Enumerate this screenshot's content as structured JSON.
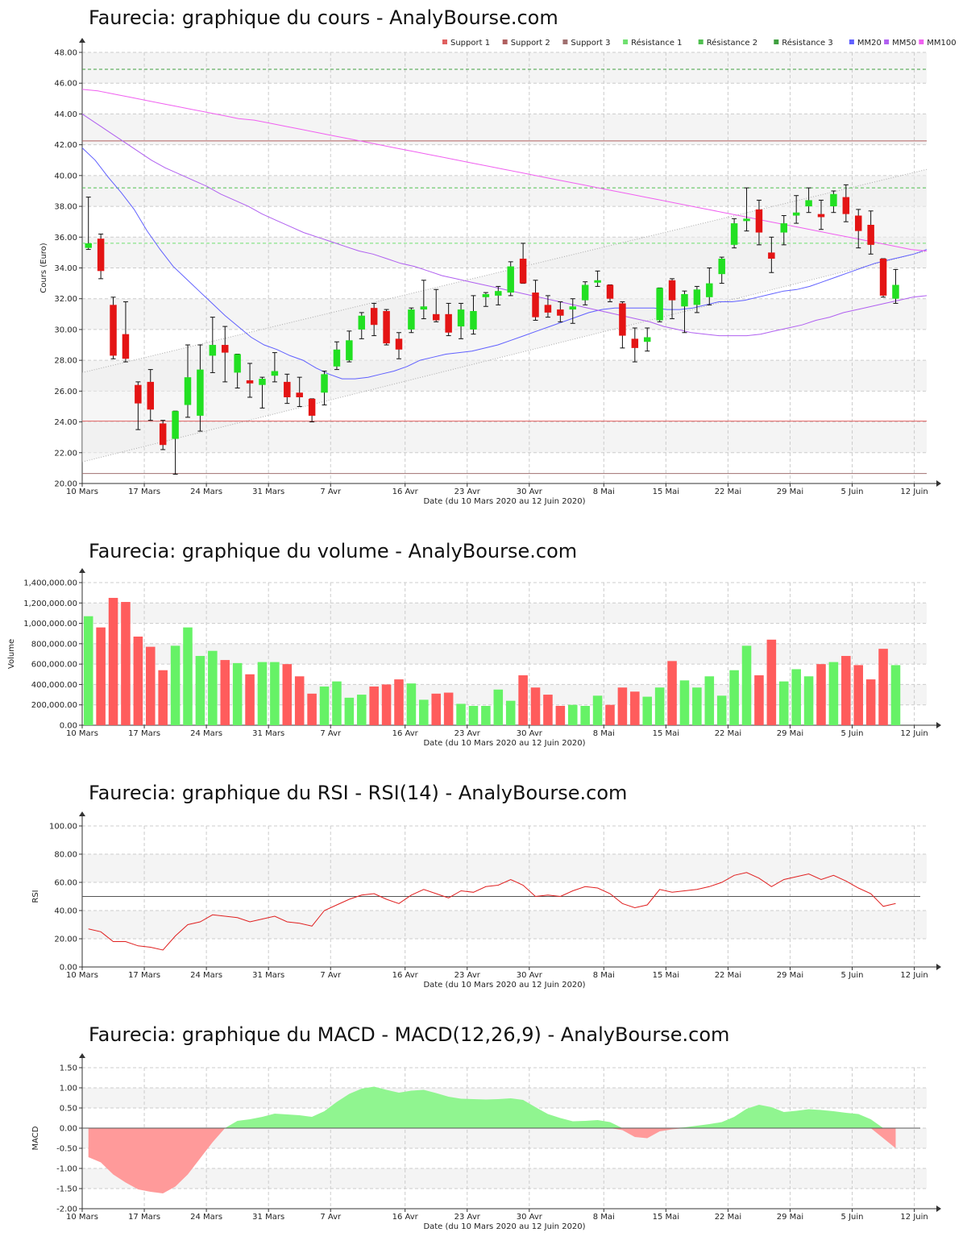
{
  "chart_data": [
    {
      "type": "candlestick",
      "title": "Faurecia: graphique du cours - AnalyBourse.com",
      "xlabel": "Date (du 10 Mars 2020 au 12 Juin 2020)",
      "ylabel": "Cours (Euro)",
      "ylim": [
        20,
        48
      ],
      "yticks": [
        "20.00",
        "22.00",
        "24.00",
        "26.00",
        "28.00",
        "30.00",
        "32.00",
        "34.00",
        "36.00",
        "38.00",
        "40.00",
        "42.00",
        "44.00",
        "46.00",
        "48.00"
      ],
      "xticks": [
        "10 Mars",
        "17 Mars",
        "24 Mars",
        "31 Mars",
        "7 Avr",
        "16 Avr",
        "23 Avr",
        "30 Avr",
        "8 Mai",
        "15 Mai",
        "22 Mai",
        "29 Mai",
        "5 Juin",
        "12 Juin"
      ],
      "xtick_index": [
        0,
        5,
        10,
        15,
        20,
        26,
        31,
        36,
        42,
        47,
        52,
        57,
        62,
        67
      ],
      "legend_position": "top-right",
      "legend": [
        {
          "name": "Support 1",
          "color": "#e06060"
        },
        {
          "name": "Support 2",
          "color": "#b06060"
        },
        {
          "name": "Support 3",
          "color": "#a07070"
        },
        {
          "name": "Résistance 1",
          "color": "#70e070"
        },
        {
          "name": "Résistance 2",
          "color": "#50c050"
        },
        {
          "name": "Résistance 3",
          "color": "#40a040"
        },
        {
          "name": "MM20",
          "color": "#6060ff"
        },
        {
          "name": "MM50",
          "color": "#b060f0"
        },
        {
          "name": "MM100",
          "color": "#f060f0"
        }
      ],
      "levels": {
        "support": [
          24.05,
          42.25,
          20.65
        ],
        "resistance": [
          35.6,
          39.2,
          46.9
        ]
      },
      "candles": [
        {
          "o": 35.3,
          "c": 35.6,
          "h": 38.6,
          "l": 35.2
        },
        {
          "o": 35.9,
          "c": 33.8,
          "h": 36.2,
          "l": 33.3
        },
        {
          "o": 31.6,
          "c": 28.3,
          "h": 32.1,
          "l": 28.1
        },
        {
          "o": 29.7,
          "c": 28.1,
          "h": 31.8,
          "l": 27.9
        },
        {
          "o": 26.4,
          "c": 25.2,
          "h": 26.6,
          "l": 23.5
        },
        {
          "o": 26.6,
          "c": 24.8,
          "h": 27.4,
          "l": 24.1
        },
        {
          "o": 23.9,
          "c": 22.5,
          "h": 24.1,
          "l": 22.2
        },
        {
          "o": 22.9,
          "c": 24.7,
          "h": 24.7,
          "l": 20.6
        },
        {
          "o": 25.1,
          "c": 26.9,
          "h": 29.0,
          "l": 24.3
        },
        {
          "o": 24.4,
          "c": 27.4,
          "h": 29.0,
          "l": 23.4
        },
        {
          "o": 28.3,
          "c": 29.0,
          "h": 30.8,
          "l": 27.2
        },
        {
          "o": 29.0,
          "c": 28.5,
          "h": 30.2,
          "l": 26.6
        },
        {
          "o": 27.2,
          "c": 28.4,
          "h": 28.4,
          "l": 26.2
        },
        {
          "o": 26.7,
          "c": 26.5,
          "h": 27.8,
          "l": 25.6
        },
        {
          "o": 26.4,
          "c": 26.8,
          "h": 26.9,
          "l": 24.9
        },
        {
          "o": 27.0,
          "c": 27.3,
          "h": 28.5,
          "l": 26.6
        },
        {
          "o": 26.6,
          "c": 25.6,
          "h": 27.1,
          "l": 25.2
        },
        {
          "o": 25.9,
          "c": 25.6,
          "h": 26.9,
          "l": 25.0
        },
        {
          "o": 25.5,
          "c": 24.4,
          "h": 25.5,
          "l": 24.0
        },
        {
          "o": 25.9,
          "c": 27.1,
          "h": 27.3,
          "l": 25.1
        },
        {
          "o": 27.6,
          "c": 28.7,
          "h": 29.2,
          "l": 27.4
        },
        {
          "o": 28.0,
          "c": 29.3,
          "h": 29.9,
          "l": 27.9
        },
        {
          "o": 30.0,
          "c": 30.9,
          "h": 31.1,
          "l": 29.4
        },
        {
          "o": 31.4,
          "c": 30.3,
          "h": 31.7,
          "l": 29.6
        },
        {
          "o": 31.2,
          "c": 29.1,
          "h": 31.3,
          "l": 29.0
        },
        {
          "o": 29.4,
          "c": 28.7,
          "h": 29.8,
          "l": 28.1
        },
        {
          "o": 30.0,
          "c": 31.3,
          "h": 31.4,
          "l": 29.8
        },
        {
          "o": 31.3,
          "c": 31.5,
          "h": 33.2,
          "l": 30.7
        },
        {
          "o": 31.0,
          "c": 30.6,
          "h": 32.6,
          "l": 30.5
        },
        {
          "o": 31.0,
          "c": 29.8,
          "h": 31.7,
          "l": 29.6
        },
        {
          "o": 30.2,
          "c": 31.3,
          "h": 31.7,
          "l": 29.4
        },
        {
          "o": 30.0,
          "c": 31.2,
          "h": 32.2,
          "l": 29.7
        },
        {
          "o": 32.1,
          "c": 32.3,
          "h": 32.4,
          "l": 31.5
        },
        {
          "o": 32.2,
          "c": 32.5,
          "h": 32.8,
          "l": 31.6
        },
        {
          "o": 32.4,
          "c": 34.1,
          "h": 34.4,
          "l": 32.2
        },
        {
          "o": 34.6,
          "c": 33.0,
          "h": 35.6,
          "l": 33.0
        },
        {
          "o": 32.4,
          "c": 30.8,
          "h": 33.2,
          "l": 30.6
        },
        {
          "o": 31.6,
          "c": 31.1,
          "h": 32.2,
          "l": 30.8
        },
        {
          "o": 31.3,
          "c": 30.9,
          "h": 31.8,
          "l": 30.5
        },
        {
          "o": 31.3,
          "c": 31.5,
          "h": 32.0,
          "l": 30.4
        },
        {
          "o": 31.9,
          "c": 32.9,
          "h": 33.1,
          "l": 31.6
        },
        {
          "o": 33.1,
          "c": 33.2,
          "h": 33.8,
          "l": 32.8
        },
        {
          "o": 32.9,
          "c": 32.0,
          "h": 32.9,
          "l": 31.8
        },
        {
          "o": 31.7,
          "c": 29.6,
          "h": 31.8,
          "l": 28.8
        },
        {
          "o": 29.4,
          "c": 28.8,
          "h": 30.1,
          "l": 27.9
        },
        {
          "o": 29.2,
          "c": 29.5,
          "h": 30.1,
          "l": 28.6
        },
        {
          "o": 30.6,
          "c": 32.7,
          "h": 32.7,
          "l": 30.5
        },
        {
          "o": 33.2,
          "c": 31.9,
          "h": 33.3,
          "l": 30.7
        },
        {
          "o": 31.5,
          "c": 32.3,
          "h": 32.5,
          "l": 29.8
        },
        {
          "o": 31.6,
          "c": 32.6,
          "h": 32.8,
          "l": 31.1
        },
        {
          "o": 32.1,
          "c": 33.0,
          "h": 34.0,
          "l": 31.6
        },
        {
          "o": 33.6,
          "c": 34.6,
          "h": 34.7,
          "l": 33.0
        },
        {
          "o": 35.5,
          "c": 36.9,
          "h": 37.2,
          "l": 35.3
        },
        {
          "o": 37.1,
          "c": 37.2,
          "h": 39.2,
          "l": 36.4
        },
        {
          "o": 37.8,
          "c": 36.3,
          "h": 38.4,
          "l": 35.5
        },
        {
          "o": 35.0,
          "c": 34.6,
          "h": 36.0,
          "l": 33.7
        },
        {
          "o": 36.3,
          "c": 36.9,
          "h": 37.4,
          "l": 35.5
        },
        {
          "o": 37.4,
          "c": 37.6,
          "h": 38.7,
          "l": 36.9
        },
        {
          "o": 38.0,
          "c": 38.4,
          "h": 39.2,
          "l": 37.6
        },
        {
          "o": 37.5,
          "c": 37.3,
          "h": 38.4,
          "l": 36.5
        },
        {
          "o": 38.0,
          "c": 38.8,
          "h": 39.0,
          "l": 37.6
        },
        {
          "o": 38.6,
          "c": 37.5,
          "h": 39.4,
          "l": 37.0
        },
        {
          "o": 37.4,
          "c": 36.4,
          "h": 37.8,
          "l": 35.3
        },
        {
          "o": 36.8,
          "c": 35.5,
          "h": 37.7,
          "l": 34.9
        },
        {
          "o": 34.6,
          "c": 32.2,
          "h": 34.6,
          "l": 32.1
        },
        {
          "o": 32.0,
          "c": 32.9,
          "h": 33.9,
          "l": 31.7
        }
      ],
      "series": [
        {
          "name": "MM20",
          "values": [
            41.8,
            41.0,
            39.9,
            38.9,
            37.8,
            36.4,
            35.2,
            34.1,
            33.3,
            32.5,
            31.7,
            30.9,
            30.2,
            29.5,
            29.0,
            28.7,
            28.3,
            28.0,
            27.5,
            27.1,
            26.8,
            26.8,
            26.9,
            27.1,
            27.3,
            27.6,
            28.0,
            28.2,
            28.4,
            28.5,
            28.6,
            28.8,
            29.0,
            29.3,
            29.6,
            29.9,
            30.2,
            30.5,
            30.8,
            31.1,
            31.3,
            31.4,
            31.4,
            31.4,
            31.4,
            31.3,
            31.3,
            31.4,
            31.6,
            31.8,
            31.8,
            31.9,
            32.1,
            32.3,
            32.5,
            32.6,
            32.8,
            33.1,
            33.4,
            33.7,
            34.0,
            34.3,
            34.5,
            34.7,
            34.9,
            35.2
          ]
        },
        {
          "name": "MM50",
          "values": [
            44.0,
            43.4,
            42.8,
            42.2,
            41.6,
            41.0,
            40.5,
            40.1,
            39.7,
            39.3,
            38.8,
            38.4,
            38.0,
            37.5,
            37.1,
            36.7,
            36.3,
            36.0,
            35.7,
            35.4,
            35.1,
            34.9,
            34.6,
            34.3,
            34.1,
            33.8,
            33.5,
            33.3,
            33.1,
            32.9,
            32.7,
            32.5,
            32.3,
            32.1,
            31.9,
            31.7,
            31.5,
            31.3,
            31.1,
            30.9,
            30.7,
            30.5,
            30.2,
            30.0,
            29.8,
            29.7,
            29.6,
            29.6,
            29.6,
            29.7,
            29.9,
            30.1,
            30.3,
            30.6,
            30.8,
            31.1,
            31.3,
            31.5,
            31.7,
            31.9,
            32.1,
            32.2
          ]
        },
        {
          "name": "MM100",
          "values": [
            45.6,
            45.5,
            45.3,
            45.1,
            44.9,
            44.7,
            44.5,
            44.3,
            44.1,
            43.9,
            43.7,
            43.6,
            43.4,
            43.2,
            43.0,
            42.8,
            42.6,
            42.4,
            42.2,
            42.0,
            41.8,
            41.6,
            41.4,
            41.2,
            41.0,
            40.8,
            40.6,
            40.4,
            40.2,
            40.0,
            39.8,
            39.6,
            39.4,
            39.2,
            39.0,
            38.8,
            38.6,
            38.4,
            38.2,
            38.0,
            37.8,
            37.6,
            37.4,
            37.2,
            37.0,
            36.8,
            36.6,
            36.4,
            36.2,
            36.0,
            35.8,
            35.6,
            35.4,
            35.2,
            35.1
          ]
        }
      ]
    },
    {
      "type": "bar",
      "title": "Faurecia: graphique du volume - AnalyBourse.com",
      "xlabel": "Date (du 10 Mars 2020 au 12 Juin 2020)",
      "ylabel": "Volume",
      "ylim": [
        0,
        1400000
      ],
      "yticks": [
        "0.00",
        "200,000.00",
        "400,000.00",
        "600,000.00",
        "800,000.00",
        "1,000,000.00",
        "1,200,000.00",
        "1,400,000.00"
      ],
      "xticks": [
        "10 Mars",
        "17 Mars",
        "24 Mars",
        "31 Mars",
        "7 Avr",
        "16 Avr",
        "23 Avr",
        "30 Avr",
        "8 Mai",
        "15 Mai",
        "22 Mai",
        "29 Mai",
        "5 Juin",
        "12 Juin"
      ],
      "values": [
        1070000,
        960000,
        1250000,
        1210000,
        870000,
        770000,
        540000,
        780000,
        960000,
        680000,
        730000,
        640000,
        610000,
        500000,
        620000,
        620000,
        600000,
        480000,
        310000,
        380000,
        430000,
        270000,
        300000,
        380000,
        400000,
        450000,
        410000,
        250000,
        310000,
        320000,
        210000,
        190000,
        190000,
        350000,
        240000,
        490000,
        370000,
        300000,
        190000,
        200000,
        190000,
        290000,
        200000,
        370000,
        330000,
        280000,
        370000,
        630000,
        440000,
        370000,
        480000,
        290000,
        540000,
        780000,
        490000,
        840000,
        430000,
        550000,
        480000,
        600000,
        620000,
        680000,
        590000,
        450000,
        750000,
        590000
      ]
    },
    {
      "type": "line",
      "title": "Faurecia: graphique du RSI - RSI(14) - AnalyBourse.com",
      "xlabel": "Date (du 10 Mars 2020 au 12 Juin 2020)",
      "ylabel": "RSI",
      "ylim": [
        0,
        100
      ],
      "yticks": [
        "0.00",
        "20.00",
        "40.00",
        "60.00",
        "80.00",
        "100.00"
      ],
      "xticks": [
        "10 Mars",
        "17 Mars",
        "24 Mars",
        "31 Mars",
        "7 Avr",
        "16 Avr",
        "23 Avr",
        "30 Avr",
        "8 Mai",
        "15 Mai",
        "22 Mai",
        "29 Mai",
        "5 Juin",
        "12 Juin"
      ],
      "reference": 50,
      "values": [
        27,
        25,
        18,
        18,
        15,
        14,
        12,
        22,
        30,
        32,
        37,
        36,
        35,
        32,
        34,
        36,
        32,
        31,
        29,
        40,
        44,
        48,
        51,
        52,
        48,
        45,
        51,
        55,
        52,
        49,
        54,
        53,
        57,
        58,
        62,
        58,
        50,
        51,
        50,
        54,
        57,
        56,
        52,
        45,
        42,
        44,
        55,
        53,
        54,
        55,
        57,
        60,
        65,
        67,
        63,
        57,
        62,
        64,
        66,
        62,
        65,
        61,
        56,
        52,
        43,
        45
      ]
    },
    {
      "type": "area",
      "title": "Faurecia: graphique du MACD - MACD(12,26,9) - AnalyBourse.com",
      "xlabel": "Date (du 10 Mars 2020 au 12 Juin 2020)",
      "ylabel": "MACD",
      "ylim": [
        -2.0,
        1.5
      ],
      "yticks": [
        "-2.00",
        "-1.50",
        "-1.00",
        "-0.50",
        "0.00",
        "0.50",
        "1.00",
        "1.50"
      ],
      "xticks": [
        "10 Mars",
        "17 Mars",
        "24 Mars",
        "31 Mars",
        "7 Avr",
        "16 Avr",
        "23 Avr",
        "30 Avr",
        "8 Mai",
        "15 Mai",
        "22 Mai",
        "29 Mai",
        "5 Juin",
        "12 Juin"
      ],
      "values": [
        -0.72,
        -0.85,
        -1.15,
        -1.35,
        -1.52,
        -1.58,
        -1.62,
        -1.45,
        -1.15,
        -0.75,
        -0.35,
        0.0,
        0.18,
        0.22,
        0.28,
        0.36,
        0.34,
        0.32,
        0.28,
        0.42,
        0.65,
        0.85,
        0.98,
        1.03,
        0.95,
        0.88,
        0.93,
        0.95,
        0.87,
        0.78,
        0.73,
        0.72,
        0.71,
        0.72,
        0.74,
        0.7,
        0.52,
        0.35,
        0.25,
        0.17,
        0.18,
        0.2,
        0.15,
        -0.05,
        -0.22,
        -0.25,
        -0.08,
        -0.03,
        0.02,
        0.06,
        0.1,
        0.15,
        0.28,
        0.48,
        0.58,
        0.52,
        0.4,
        0.43,
        0.47,
        0.45,
        0.42,
        0.38,
        0.35,
        0.22,
        -0.25,
        -0.5
      ]
    }
  ]
}
